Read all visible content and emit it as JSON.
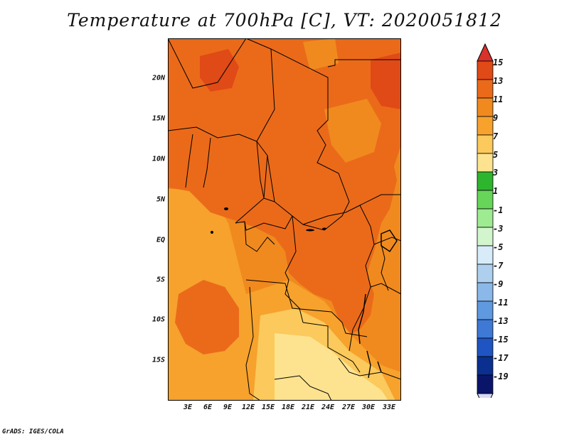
{
  "title": "Temperature at 700hPa [C], VT: 2020051812",
  "credit": "GrADS: IGES/COLA",
  "map": {
    "region": "Central Africa",
    "lat_labels": [
      "20N",
      "15N",
      "10N",
      "5N",
      "EQ",
      "5S",
      "10S",
      "15S"
    ],
    "lon_labels": [
      "3E",
      "6E",
      "9E",
      "12E",
      "15E",
      "18E",
      "21E",
      "24E",
      "27E",
      "30E",
      "33E"
    ],
    "colors": {
      "c7_9": "#f6a22d",
      "c9_11": "#f08a1e",
      "c11_13": "#ea6a1a",
      "c13_15": "#e04a16",
      "c5_7": "#fbc95c",
      "c3_5": "#fde38f",
      "border": "#000000"
    }
  },
  "colorbar": {
    "labels": [
      "15",
      "13",
      "11",
      "9",
      "7",
      "5",
      "3",
      "1",
      "-1",
      "-3",
      "-5",
      "-7",
      "-9",
      "-11",
      "-13",
      "-15",
      "-17",
      "-19"
    ],
    "colors": [
      "#d8322a",
      "#e04a16",
      "#ea6a1a",
      "#f08a1e",
      "#f6a22d",
      "#fbc95c",
      "#fde38f",
      "#2db52d",
      "#66d55a",
      "#9feb92",
      "#d2f5cd",
      "#d8ebf8",
      "#aed0ee",
      "#8ab8e8",
      "#5f99df",
      "#3e79d6",
      "#1e55c2",
      "#0a2f8f",
      "#0a156a",
      "#d8d8f8"
    ]
  }
}
